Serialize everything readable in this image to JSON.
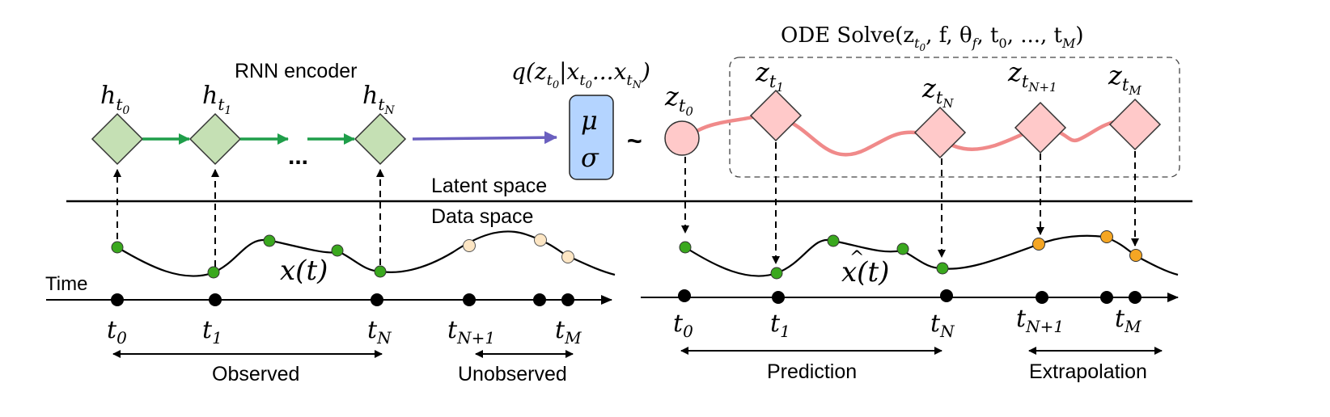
{
  "labels": {
    "rnn_encoder": "RNN encoder",
    "posterior": "q(z",
    "posterior_mid": "|x",
    "posterior_dots": "...x",
    "posterior_end": ")",
    "ode_solve": "ODE Solve(z",
    "ode_args": ", f, θ",
    "ode_args2": ", t",
    "ode_args3": ", ..., t",
    "ode_end": ")",
    "latent_space": "Latent space",
    "data_space": "Data space",
    "time": "Time",
    "ellipsis": "...",
    "tilde": "~",
    "mu": "μ",
    "sigma": "σ",
    "x_t": "x(t)",
    "xhat_t": "x(t)",
    "observed": "Observed",
    "unobserved": "Unobserved",
    "prediction": "Prediction",
    "extrapolation": "Extrapolation"
  },
  "symbols": {
    "h": "h",
    "z": "z",
    "t": "t",
    "sub_0": "0",
    "sub_1": "1",
    "sub_N": "N",
    "sub_N1": "N+1",
    "sub_M": "M",
    "sub_f": "f"
  },
  "colors": {
    "encoder_fill": "#c5e0b4",
    "encoder_stroke": "#333333",
    "green_arrow": "#1f9e4a",
    "purple_arrow": "#6a5fbf",
    "mu_sigma_fill": "#b4d4ff",
    "latent_fill": "#ffc9c9",
    "latent_curve": "#f08a8a",
    "observed_point": "#3aa81e",
    "unobserved_point": "#fde6c4",
    "extrapolated_point": "#f5a623"
  }
}
